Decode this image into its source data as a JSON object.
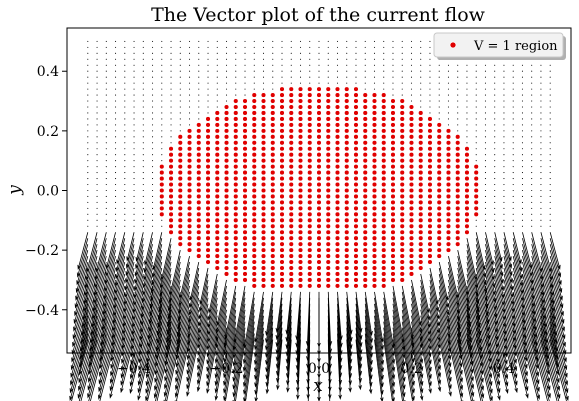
{
  "chart_data": {
    "type": "scatter",
    "title": "The Vector plot of the current flow",
    "xlabel": "x",
    "ylabel": "y",
    "xlim": [
      -0.545,
      0.545
    ],
    "ylim": [
      -0.545,
      0.545
    ],
    "xticks": [
      -0.4,
      -0.2,
      0.0,
      0.2,
      0.4
    ],
    "yticks": [
      -0.4,
      -0.2,
      0.0,
      0.2,
      0.4
    ],
    "xtick_labels": [
      "−0.4",
      "−0.2",
      "0.0",
      "0.2",
      "0.4"
    ],
    "ytick_labels": [
      "−0.4",
      "−0.2",
      "0.0",
      "0.2",
      "0.4"
    ],
    "grid": false,
    "legend": {
      "position": "top-right",
      "entries": [
        "V = 1 region"
      ]
    },
    "series": [
      {
        "name": "V = 1 region",
        "kind": "scatter",
        "color": "#e00000",
        "region": {
          "shape": "disk-with-flat-bottom",
          "center": [
            0.0,
            0.0
          ],
          "radius": 0.35,
          "y_min": -0.33,
          "spacing": 0.02
        }
      },
      {
        "kind": "quiver",
        "color": "#000000",
        "grid": {
          "x_range": [
            -0.5,
            0.5
          ],
          "y_range": [
            -0.5,
            0.5
          ],
          "step": 0.02
        },
        "field": {
          "description": "flow pointing downward below the region, tiny elsewhere",
          "source_center": [
            0.0,
            -0.33
          ],
          "max_magnitude": 0.17
        }
      }
    ]
  }
}
